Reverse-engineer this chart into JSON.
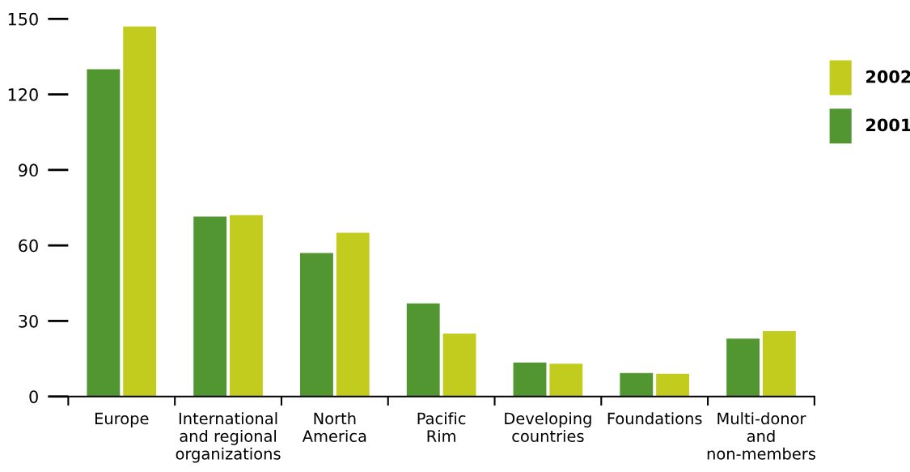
{
  "chart_data": {
    "type": "bar",
    "categories": [
      "Europe",
      "International\nand regional\norganizations",
      "North\nAmerica",
      "Pacific\nRim",
      "Developing\ncountries",
      "Foundations",
      "Multi-donor\nand\nnon-members"
    ],
    "series": [
      {
        "name": "2001",
        "color": "#529632",
        "values": [
          130,
          71.5,
          57,
          37,
          13.5,
          9.3,
          23
        ]
      },
      {
        "name": "2002",
        "color": "#c2cc1e",
        "values": [
          147,
          72,
          65,
          25,
          13,
          9,
          26
        ]
      }
    ],
    "ylim": [
      0,
      150
    ],
    "yticks": [
      0,
      30,
      60,
      90,
      120,
      150
    ],
    "grid": false,
    "legend": "right"
  }
}
